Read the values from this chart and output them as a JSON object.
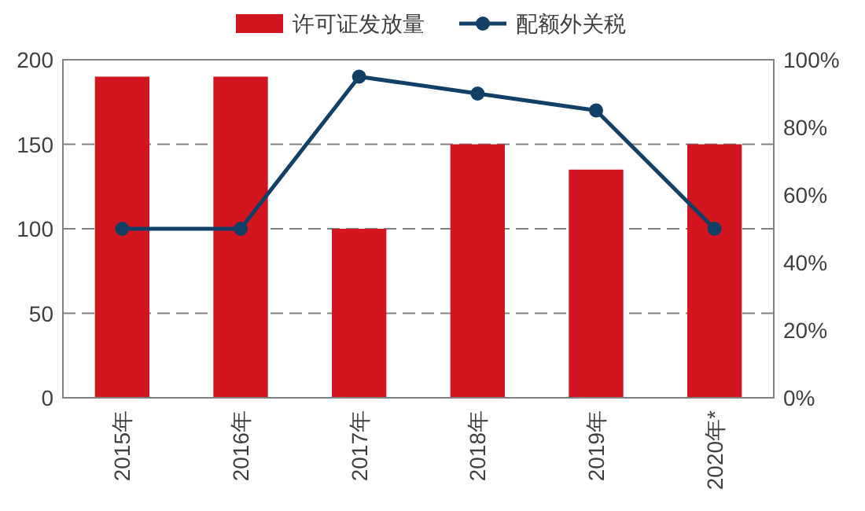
{
  "chart_data": {
    "type": "bar",
    "categories": [
      "2015年",
      "2016年",
      "2017年",
      "2018年",
      "2019年",
      "2020年*"
    ],
    "series": [
      {
        "name": "许可证发放量",
        "color": "#d2151e",
        "values": [
          190,
          190,
          100,
          150,
          135,
          150
        ]
      },
      {
        "name": "配额外关税",
        "type": "line",
        "axis": "y2",
        "color": "#123f66",
        "marker": "circle",
        "values": [
          50,
          50,
          95,
          90,
          85,
          50
        ]
      }
    ],
    "ylim": [
      0,
      200
    ],
    "yticks": [
      0,
      50,
      100,
      150,
      200
    ],
    "y2lim": [
      0,
      100
    ],
    "y2ticks": [
      {
        "value": 0,
        "label": "0%"
      },
      {
        "value": 20,
        "label": "20%"
      },
      {
        "value": 40,
        "label": "40%"
      },
      {
        "value": 60,
        "label": "60%"
      },
      {
        "value": 80,
        "label": "80%"
      },
      {
        "value": 100,
        "label": "100%"
      }
    ],
    "grid": "y",
    "legend": "top"
  }
}
